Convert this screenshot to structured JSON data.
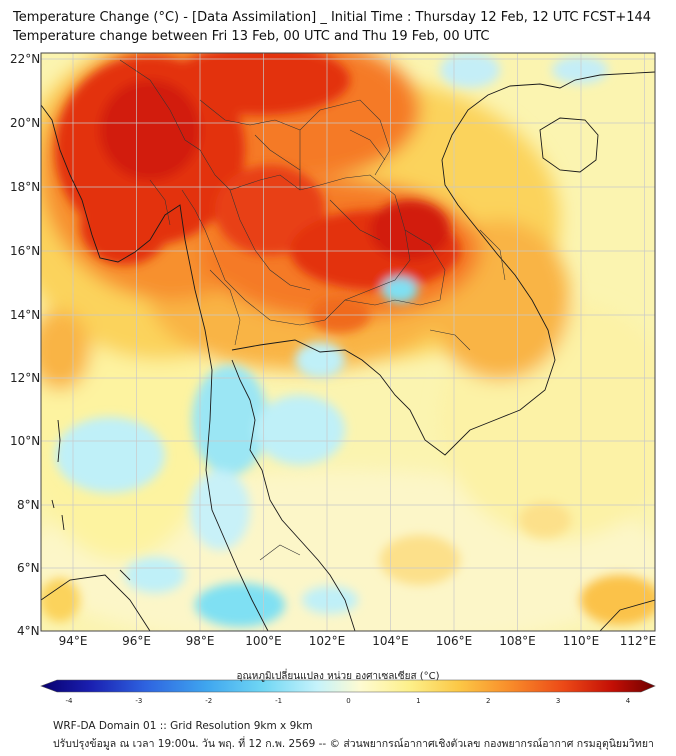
{
  "title": {
    "line1": "Temperature Change (°C) - [Data Assimilation] _ Initial Time : Thursday 12 Feb, 12 UTC FCST+144",
    "line2": "Temperature change between Fri 13 Feb, 00 UTC and Thu 19 Feb, 00 UTC"
  },
  "map": {
    "lat_labels": [
      "22°N",
      "20°N",
      "18°N",
      "16°N",
      "14°N",
      "12°N",
      "10°N",
      "8°N",
      "6°N",
      "4°N"
    ],
    "lon_labels": [
      "94°E",
      "96°E",
      "98°E",
      "100°E",
      "102°E",
      "104°E",
      "106°E",
      "108°E",
      "110°E",
      "112°E"
    ],
    "colors": {
      "hot_dark": "#c40000",
      "hot": "#e62d12",
      "warm": "#f46a1f",
      "orange": "#f9a43a",
      "yellow_orange": "#fcd15a",
      "yellow": "#fdf39a",
      "pale": "#fbf7c8",
      "cyan_pale": "#bff0f8",
      "cyan": "#7fe0f3"
    }
  },
  "colorbar": {
    "label": "อุณหภูมิเปลี่ยนแปลง หน่วย องศาเซลเซียส (°C)",
    "ticks": [
      "-4",
      "-3",
      "-2",
      "-1",
      "0",
      "1",
      "2",
      "3",
      "4"
    ],
    "min": -4,
    "max": 4
  },
  "footer": {
    "line1": "WRF-DA Domain 01 :: Grid Resolution 9km x 9km",
    "line2": "ปรับปรุงข้อมูล ณ เวลา 19:00น. วัน พฤ. ที่ 12 ก.พ. 2569 -- © ส่วนพยากรณ์อากาศเชิงตัวเลข กองพยากรณ์อากาศ กรมอุตุนิยมวิทยา"
  }
}
